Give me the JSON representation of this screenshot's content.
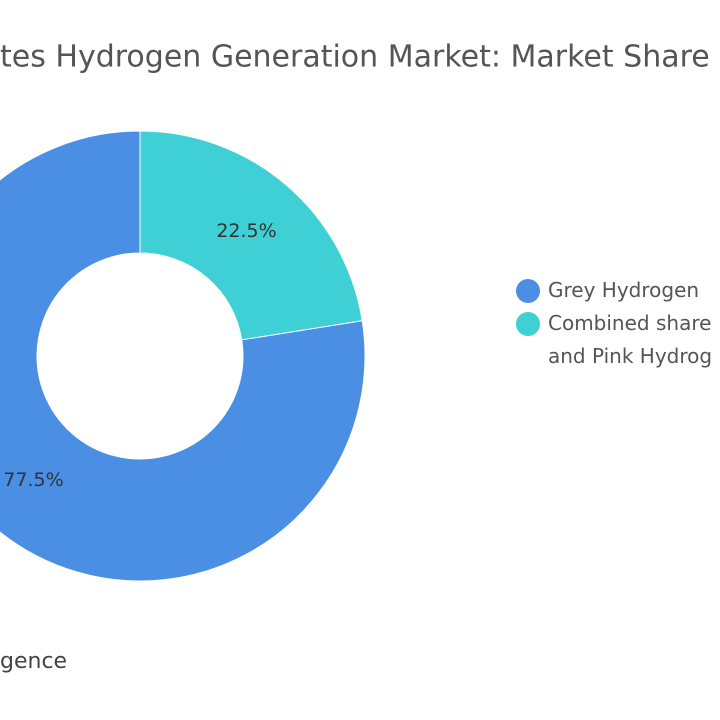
{
  "chart_data": {
    "type": "donut",
    "title": "tes Hydrogen Generation Market: Market Share by",
    "categories": [
      "Grey Hydrogen",
      "Combined share and Pink Hydrog"
    ],
    "values": [
      77.5,
      22.5
    ],
    "value_labels": [
      "77.5%",
      "22.5%"
    ],
    "colors": [
      "#4a8fe3",
      "#3fd0d6"
    ],
    "legend": "right",
    "source": "gence"
  }
}
